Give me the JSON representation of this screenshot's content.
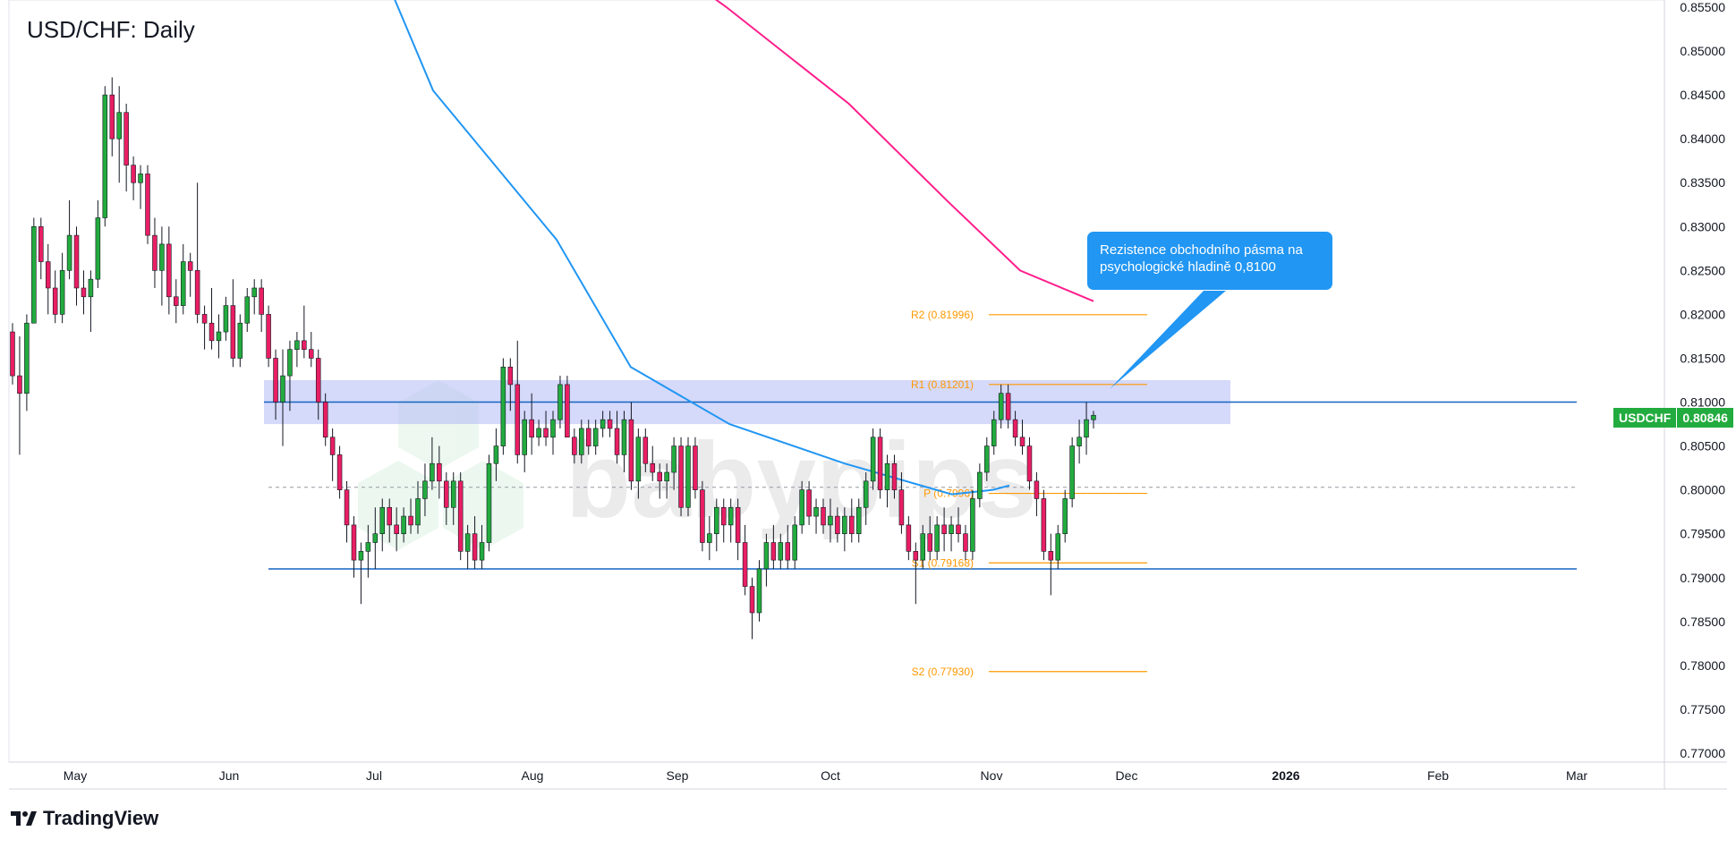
{
  "title": "USD/CHF: Daily",
  "brand": {
    "name": "TradingView"
  },
  "watermark": "babypips",
  "callout": {
    "line1": "Rezistence obchodního pásma na",
    "line2": "psychologické hladině 0,8100"
  },
  "price_badge": {
    "symbol": "USDCHF",
    "value": "0.80846",
    "color": "#22ab3e"
  },
  "colors": {
    "bull": "#22ab3e",
    "bear": "#e91e63",
    "ma_fast": "#2196f3",
    "ma_slow": "#ff1e8c",
    "pivot": "#ff9800",
    "zone": "#b3b9f5",
    "level": "#1565c0"
  },
  "chart_data": {
    "type": "candlestick",
    "symbol": "USDCHF",
    "timeframe": "Daily",
    "ylim": [
      0.77,
      0.855
    ],
    "x_ticks": [
      "May",
      "Jun",
      "Jul",
      "Aug",
      "Sep",
      "Oct",
      "Nov",
      "Dec",
      "2026",
      "Feb",
      "Mar"
    ],
    "y_ticks": [
      "0.85500",
      "0.85000",
      "0.84500",
      "0.84000",
      "0.83500",
      "0.83000",
      "0.82500",
      "0.82000",
      "0.81500",
      "0.81000",
      "0.80500",
      "0.80000",
      "0.79500",
      "0.79000",
      "0.78500",
      "0.78000",
      "0.77500",
      "0.77000"
    ],
    "candles": [
      [
        0.818,
        0.819,
        0.812,
        0.813
      ],
      [
        0.813,
        0.8175,
        0.804,
        0.811
      ],
      [
        0.811,
        0.82,
        0.809,
        0.819
      ],
      [
        0.819,
        0.831,
        0.819,
        0.83
      ],
      [
        0.83,
        0.831,
        0.824,
        0.826
      ],
      [
        0.826,
        0.828,
        0.82,
        0.823
      ],
      [
        0.823,
        0.825,
        0.819,
        0.82
      ],
      [
        0.82,
        0.827,
        0.819,
        0.825
      ],
      [
        0.825,
        0.833,
        0.824,
        0.829
      ],
      [
        0.829,
        0.83,
        0.821,
        0.823
      ],
      [
        0.823,
        0.825,
        0.82,
        0.822
      ],
      [
        0.822,
        0.825,
        0.818,
        0.824
      ],
      [
        0.824,
        0.833,
        0.823,
        0.831
      ],
      [
        0.831,
        0.846,
        0.83,
        0.845
      ],
      [
        0.845,
        0.847,
        0.838,
        0.84
      ],
      [
        0.84,
        0.846,
        0.835,
        0.843
      ],
      [
        0.843,
        0.844,
        0.834,
        0.837
      ],
      [
        0.837,
        0.838,
        0.833,
        0.835
      ],
      [
        0.835,
        0.837,
        0.832,
        0.836
      ],
      [
        0.836,
        0.837,
        0.828,
        0.829
      ],
      [
        0.829,
        0.831,
        0.823,
        0.825
      ],
      [
        0.825,
        0.83,
        0.821,
        0.828
      ],
      [
        0.828,
        0.83,
        0.82,
        0.822
      ],
      [
        0.822,
        0.824,
        0.819,
        0.821
      ],
      [
        0.821,
        0.828,
        0.82,
        0.826
      ],
      [
        0.826,
        0.827,
        0.822,
        0.825
      ],
      [
        0.825,
        0.835,
        0.819,
        0.82
      ],
      [
        0.82,
        0.821,
        0.816,
        0.819
      ],
      [
        0.819,
        0.823,
        0.816,
        0.817
      ],
      [
        0.817,
        0.82,
        0.815,
        0.818
      ],
      [
        0.818,
        0.822,
        0.817,
        0.821
      ],
      [
        0.821,
        0.824,
        0.814,
        0.815
      ],
      [
        0.815,
        0.82,
        0.814,
        0.819
      ],
      [
        0.819,
        0.823,
        0.818,
        0.822
      ],
      [
        0.822,
        0.824,
        0.82,
        0.823
      ],
      [
        0.823,
        0.824,
        0.818,
        0.82
      ],
      [
        0.82,
        0.821,
        0.814,
        0.815
      ],
      [
        0.815,
        0.816,
        0.808,
        0.81
      ],
      [
        0.81,
        0.816,
        0.805,
        0.813
      ],
      [
        0.813,
        0.817,
        0.809,
        0.816
      ],
      [
        0.816,
        0.818,
        0.814,
        0.817
      ],
      [
        0.817,
        0.821,
        0.815,
        0.816
      ],
      [
        0.816,
        0.818,
        0.814,
        0.815
      ],
      [
        0.815,
        0.816,
        0.808,
        0.81
      ],
      [
        0.81,
        0.811,
        0.805,
        0.806
      ],
      [
        0.806,
        0.807,
        0.801,
        0.804
      ],
      [
        0.804,
        0.805,
        0.799,
        0.8
      ],
      [
        0.8,
        0.801,
        0.794,
        0.796
      ],
      [
        0.796,
        0.797,
        0.79,
        0.792
      ],
      [
        0.792,
        0.794,
        0.787,
        0.793
      ],
      [
        0.793,
        0.796,
        0.79,
        0.794
      ],
      [
        0.794,
        0.798,
        0.791,
        0.795
      ],
      [
        0.795,
        0.799,
        0.793,
        0.798
      ],
      [
        0.798,
        0.799,
        0.794,
        0.796
      ],
      [
        0.796,
        0.798,
        0.793,
        0.795
      ],
      [
        0.795,
        0.798,
        0.794,
        0.797
      ],
      [
        0.797,
        0.799,
        0.795,
        0.796
      ],
      [
        0.796,
        0.801,
        0.795,
        0.799
      ],
      [
        0.799,
        0.803,
        0.797,
        0.801
      ],
      [
        0.801,
        0.806,
        0.8,
        0.803
      ],
      [
        0.803,
        0.805,
        0.799,
        0.801
      ],
      [
        0.801,
        0.802,
        0.796,
        0.798
      ],
      [
        0.798,
        0.802,
        0.796,
        0.801
      ],
      [
        0.801,
        0.802,
        0.792,
        0.793
      ],
      [
        0.793,
        0.796,
        0.791,
        0.795
      ],
      [
        0.795,
        0.797,
        0.791,
        0.792
      ],
      [
        0.792,
        0.796,
        0.791,
        0.794
      ],
      [
        0.794,
        0.804,
        0.793,
        0.803
      ],
      [
        0.803,
        0.807,
        0.801,
        0.805
      ],
      [
        0.805,
        0.815,
        0.804,
        0.814
      ],
      [
        0.814,
        0.815,
        0.809,
        0.812
      ],
      [
        0.812,
        0.817,
        0.803,
        0.804
      ],
      [
        0.804,
        0.809,
        0.802,
        0.808
      ],
      [
        0.808,
        0.811,
        0.804,
        0.806
      ],
      [
        0.806,
        0.808,
        0.805,
        0.807
      ],
      [
        0.807,
        0.809,
        0.805,
        0.806
      ],
      [
        0.806,
        0.809,
        0.804,
        0.808
      ],
      [
        0.808,
        0.813,
        0.807,
        0.812
      ],
      [
        0.812,
        0.813,
        0.806,
        0.806
      ],
      [
        0.806,
        0.807,
        0.803,
        0.804
      ],
      [
        0.804,
        0.808,
        0.803,
        0.807
      ],
      [
        0.807,
        0.808,
        0.804,
        0.805
      ],
      [
        0.805,
        0.808,
        0.804,
        0.807
      ],
      [
        0.807,
        0.809,
        0.806,
        0.808
      ],
      [
        0.808,
        0.809,
        0.806,
        0.807
      ],
      [
        0.807,
        0.809,
        0.803,
        0.804
      ],
      [
        0.804,
        0.809,
        0.802,
        0.808
      ],
      [
        0.808,
        0.81,
        0.8,
        0.801
      ],
      [
        0.801,
        0.807,
        0.799,
        0.806
      ],
      [
        0.806,
        0.807,
        0.802,
        0.803
      ],
      [
        0.803,
        0.805,
        0.801,
        0.802
      ],
      [
        0.802,
        0.803,
        0.799,
        0.801
      ],
      [
        0.801,
        0.803,
        0.799,
        0.802
      ],
      [
        0.802,
        0.806,
        0.8,
        0.805
      ],
      [
        0.805,
        0.806,
        0.797,
        0.798
      ],
      [
        0.798,
        0.806,
        0.797,
        0.805
      ],
      [
        0.805,
        0.806,
        0.799,
        0.8
      ],
      [
        0.8,
        0.801,
        0.793,
        0.794
      ],
      [
        0.794,
        0.797,
        0.792,
        0.795
      ],
      [
        0.795,
        0.799,
        0.793,
        0.798
      ],
      [
        0.798,
        0.799,
        0.794,
        0.796
      ],
      [
        0.796,
        0.799,
        0.794,
        0.798
      ],
      [
        0.798,
        0.799,
        0.792,
        0.794
      ],
      [
        0.794,
        0.796,
        0.788,
        0.789
      ],
      [
        0.789,
        0.79,
        0.783,
        0.786
      ],
      [
        0.786,
        0.792,
        0.785,
        0.791
      ],
      [
        0.791,
        0.795,
        0.789,
        0.794
      ],
      [
        0.794,
        0.796,
        0.791,
        0.792
      ],
      [
        0.792,
        0.795,
        0.791,
        0.794
      ],
      [
        0.794,
        0.796,
        0.791,
        0.792
      ],
      [
        0.792,
        0.797,
        0.791,
        0.796
      ],
      [
        0.796,
        0.801,
        0.795,
        0.8
      ],
      [
        0.8,
        0.801,
        0.796,
        0.797
      ],
      [
        0.797,
        0.799,
        0.795,
        0.798
      ],
      [
        0.798,
        0.799,
        0.795,
        0.796
      ],
      [
        0.796,
        0.799,
        0.794,
        0.797
      ],
      [
        0.797,
        0.798,
        0.794,
        0.795
      ],
      [
        0.795,
        0.798,
        0.793,
        0.797
      ],
      [
        0.797,
        0.799,
        0.794,
        0.795
      ],
      [
        0.795,
        0.799,
        0.794,
        0.798
      ],
      [
        0.798,
        0.802,
        0.796,
        0.801
      ],
      [
        0.801,
        0.807,
        0.8,
        0.806
      ],
      [
        0.806,
        0.807,
        0.799,
        0.8
      ],
      [
        0.8,
        0.804,
        0.798,
        0.803
      ],
      [
        0.803,
        0.804,
        0.799,
        0.8
      ],
      [
        0.8,
        0.802,
        0.795,
        0.796
      ],
      [
        0.796,
        0.797,
        0.792,
        0.793
      ],
      [
        0.793,
        0.794,
        0.787,
        0.792
      ],
      [
        0.792,
        0.796,
        0.791,
        0.795
      ],
      [
        0.795,
        0.797,
        0.792,
        0.793
      ],
      [
        0.793,
        0.797,
        0.792,
        0.796
      ],
      [
        0.796,
        0.798,
        0.793,
        0.795
      ],
      [
        0.795,
        0.797,
        0.793,
        0.796
      ],
      [
        0.796,
        0.798,
        0.794,
        0.795
      ],
      [
        0.795,
        0.796,
        0.792,
        0.793
      ],
      [
        0.793,
        0.8,
        0.792,
        0.799
      ],
      [
        0.799,
        0.803,
        0.798,
        0.802
      ],
      [
        0.802,
        0.806,
        0.801,
        0.805
      ],
      [
        0.805,
        0.809,
        0.804,
        0.808
      ],
      [
        0.808,
        0.812,
        0.807,
        0.811
      ],
      [
        0.811,
        0.812,
        0.807,
        0.808
      ],
      [
        0.808,
        0.809,
        0.805,
        0.806
      ],
      [
        0.806,
        0.808,
        0.804,
        0.805
      ],
      [
        0.805,
        0.806,
        0.8,
        0.801
      ],
      [
        0.801,
        0.802,
        0.797,
        0.799
      ],
      [
        0.799,
        0.8,
        0.792,
        0.793
      ],
      [
        0.793,
        0.795,
        0.788,
        0.792
      ],
      [
        0.792,
        0.796,
        0.791,
        0.795
      ],
      [
        0.795,
        0.8,
        0.794,
        0.799
      ],
      [
        0.799,
        0.806,
        0.798,
        0.805
      ],
      [
        0.805,
        0.808,
        0.803,
        0.806
      ],
      [
        0.806,
        0.81,
        0.804,
        0.808
      ],
      [
        0.808,
        0.809,
        0.807,
        0.8085
      ]
    ],
    "ma_fast": [
      [
        0.0,
        0.89
      ],
      [
        0.2,
        0.8455
      ],
      [
        0.35,
        0.8285
      ],
      [
        0.44,
        0.814
      ],
      [
        0.56,
        0.8075
      ],
      [
        0.7,
        0.803
      ],
      [
        0.83,
        0.7995
      ],
      [
        0.88,
        0.8
      ],
      [
        0.9,
        0.8005
      ]
    ],
    "ma_slow": [
      [
        0.0,
        0.865
      ],
      [
        0.25,
        0.855
      ],
      [
        0.5,
        0.844
      ],
      [
        0.7,
        0.833
      ],
      [
        0.85,
        0.825
      ],
      [
        1.0,
        0.8215
      ]
    ],
    "levels": {
      "r2": {
        "label": "R2 (0.81996)",
        "value": 0.81996
      },
      "r1": {
        "label": "R1 (0.81201)",
        "value": 0.81201
      },
      "p": {
        "label": "P (0.7996)",
        "value": 0.7996
      },
      "s1": {
        "label": "S1 (0.79168)",
        "value": 0.79168
      },
      "s2": {
        "label": "S2 (0.77930)",
        "value": 0.7793
      }
    },
    "resistance_line": 0.81,
    "support_line": 0.791,
    "dashed_line": 0.8003,
    "resistance_zone": [
      0.8075,
      0.8125
    ],
    "last_price": 0.80846
  }
}
